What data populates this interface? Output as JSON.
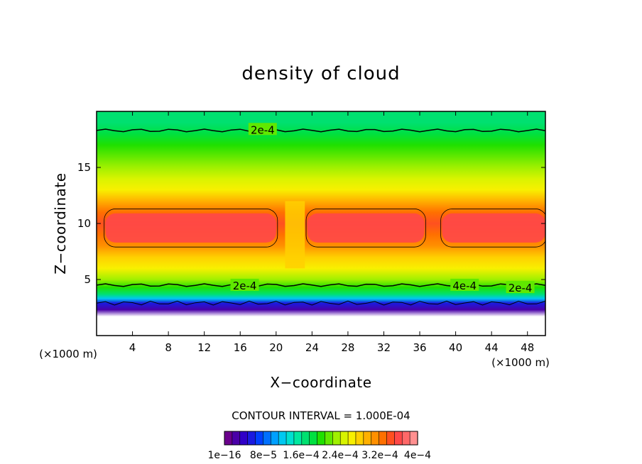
{
  "chart_data": {
    "type": "heatmap",
    "title": "density of cloud",
    "xlabel": "X−coordinate",
    "ylabel": "Z−coordinate",
    "x_unit": "(×1000 m)",
    "y_unit": "(×1000 m)",
    "xlim": [
      0,
      50
    ],
    "ylim": [
      0,
      20
    ],
    "x_ticks": [
      4,
      8,
      12,
      16,
      20,
      24,
      28,
      32,
      36,
      40,
      44,
      48
    ],
    "y_ticks": [
      5,
      10,
      15
    ],
    "contour_interval_text": "CONTOUR INTERVAL = 1.000E-04",
    "contour_levels": [
      {
        "level": "2e-4",
        "x": 18.5,
        "z": 18.4
      },
      {
        "level": "2e-4",
        "x": 16.5,
        "z": 4.5
      },
      {
        "level": "4e-4",
        "x": 41.0,
        "z": 4.5
      },
      {
        "level": "2e-4",
        "x": 47.2,
        "z": 4.3
      }
    ],
    "profile": [
      {
        "z": 1.7,
        "value": 0.0
      },
      {
        "z": 2.3,
        "value": 2e-05
      },
      {
        "z": 2.9,
        "value": 6e-05
      },
      {
        "z": 3.3,
        "value": 0.00012
      },
      {
        "z": 3.7,
        "value": 0.00017
      },
      {
        "z": 4.3,
        "value": 0.00021
      },
      {
        "z": 5.0,
        "value": 0.00024
      },
      {
        "z": 6.0,
        "value": 0.00027
      },
      {
        "z": 7.0,
        "value": 0.0003
      },
      {
        "z": 8.0,
        "value": 0.00033
      },
      {
        "z": 9.0,
        "value": 0.00035
      },
      {
        "z": 10.0,
        "value": 0.00036
      },
      {
        "z": 11.0,
        "value": 0.00034
      },
      {
        "z": 12.0,
        "value": 0.00031
      },
      {
        "z": 13.0,
        "value": 0.000285
      },
      {
        "z": 14.0,
        "value": 0.00026
      },
      {
        "z": 15.0,
        "value": 0.00024
      },
      {
        "z": 16.0,
        "value": 0.00022
      },
      {
        "z": 17.0,
        "value": 0.000205
      },
      {
        "z": 18.0,
        "value": 0.000195
      },
      {
        "z": 19.0,
        "value": 0.00018
      },
      {
        "z": 20.0,
        "value": 0.00017
      }
    ],
    "colorbar": {
      "colors": [
        "#6a008c",
        "#4a00a8",
        "#3000c8",
        "#1a1ae0",
        "#0040ff",
        "#0070ff",
        "#00a0ff",
        "#00c8f0",
        "#00e0d0",
        "#00e8a0",
        "#00e070",
        "#00e040",
        "#20e000",
        "#60e800",
        "#a0f000",
        "#d8f400",
        "#f8f000",
        "#ffd000",
        "#ffb000",
        "#ff9000",
        "#ff7000",
        "#ff5020",
        "#ff4848",
        "#ff6868",
        "#ff9090"
      ],
      "tick_labels": [
        "1e−16",
        "8e−5",
        "1.6e−4",
        "2.4e−4",
        "3.2e−4",
        "4e−4"
      ]
    }
  }
}
